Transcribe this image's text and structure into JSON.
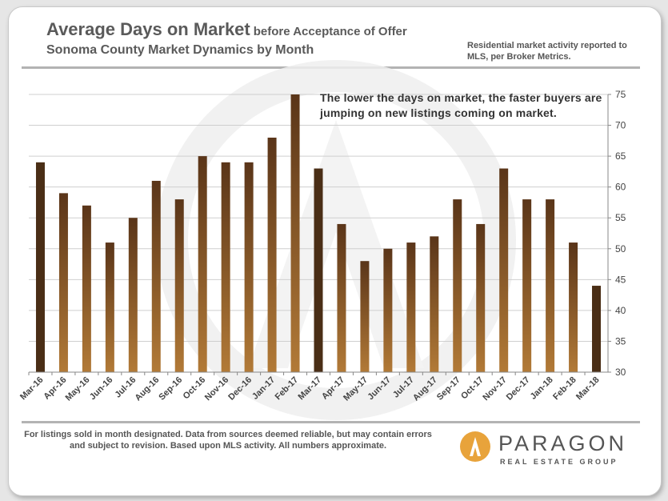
{
  "title": {
    "main": "Average Days on Market",
    "qualifier": "before Acceptance of Offer",
    "subtitle": "Sonoma County Market Dynamics by Month"
  },
  "source_note": "Residential market activity reported to MLS, per Broker Metrics.",
  "annotation": "The lower the days on market, the faster buyers are jumping  on new listings  coming  on market.",
  "footnote": "For listings sold in month designated. Data from sources deemed reliable, but may contain errors and subject to revision. Based upon MLS activity. All numbers approximate.",
  "logo": {
    "name": "PARAGON",
    "tagline": "REAL ESTATE GROUP",
    "badge_icon": "paragon-a-icon"
  },
  "colors": {
    "bar_gradient": [
      "#5a3519",
      "#b27a37"
    ],
    "bar_highlight": "#4a2e16",
    "rule": "#b3b3b3",
    "logo_badge": "#e8a33b"
  },
  "chart_data": {
    "type": "bar",
    "categories": [
      "Mar-16",
      "Apr-16",
      "May-16",
      "Jun-16",
      "Jul-16",
      "Aug-16",
      "Sep-16",
      "Oct-16",
      "Nov-16",
      "Dec-16",
      "Jan-17",
      "Feb-17",
      "Mar-17",
      "Apr-17",
      "May-17",
      "Jun-17",
      "Jul-17",
      "Aug-17",
      "Sep-17",
      "Oct-17",
      "Nov-17",
      "Dec-17",
      "Jan-18",
      "Feb-18",
      "Mar-18"
    ],
    "values": [
      64,
      59,
      57,
      51,
      55,
      61,
      58,
      65,
      64,
      64,
      68,
      75,
      63,
      54,
      48,
      50,
      51,
      52,
      58,
      54,
      63,
      58,
      58,
      51,
      44
    ],
    "highlighted_categories": [
      "Mar-16",
      "Mar-17",
      "Mar-18"
    ],
    "ylim": [
      30,
      75
    ],
    "yticks": [
      30,
      35,
      40,
      45,
      50,
      55,
      60,
      65,
      70,
      75
    ],
    "y_axis_side": "right",
    "grid": true
  }
}
